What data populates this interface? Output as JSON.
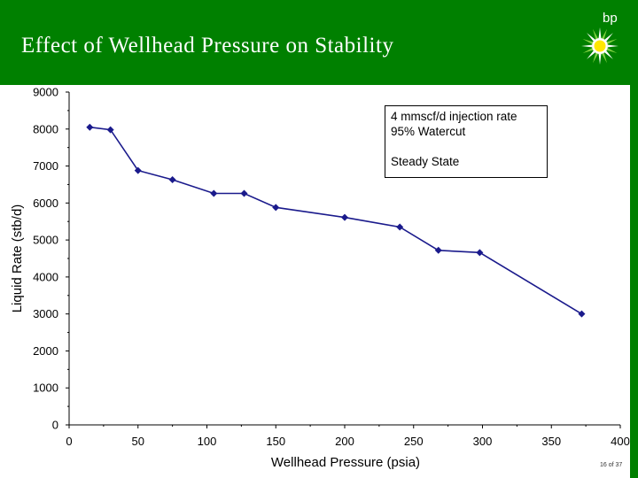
{
  "slide": {
    "title": "Effect of Wellhead Pressure on Stability",
    "logo_text": "bp",
    "page_number": "16 of 37",
    "colors": {
      "header": "#008000",
      "series": "#1a1a8c",
      "logo_yellow": "#ffe600"
    }
  },
  "annotation": {
    "line1": "4 mmscf/d injection rate",
    "line2": "95% Watercut",
    "line3": "Steady State"
  },
  "chart_data": {
    "type": "line",
    "title": "",
    "xlabel": "Wellhead Pressure (psia)",
    "ylabel": "Liquid Rate (stb/d)",
    "xlim": [
      0,
      400
    ],
    "ylim": [
      0,
      9000
    ],
    "xticks": [
      "0",
      "50",
      "100",
      "150",
      "200",
      "250",
      "300",
      "350",
      "400"
    ],
    "yticks": [
      "0",
      "1000",
      "2000",
      "3000",
      "4000",
      "5000",
      "6000",
      "7000",
      "8000",
      "9000"
    ],
    "grid": false,
    "series": [
      {
        "name": "",
        "x": [
          15,
          30,
          50,
          75,
          105,
          127,
          150,
          200,
          240,
          268,
          298,
          372
        ],
        "y": [
          8050,
          7980,
          6880,
          6630,
          6260,
          6260,
          5880,
          5610,
          5350,
          4720,
          4660,
          3000
        ]
      }
    ]
  }
}
